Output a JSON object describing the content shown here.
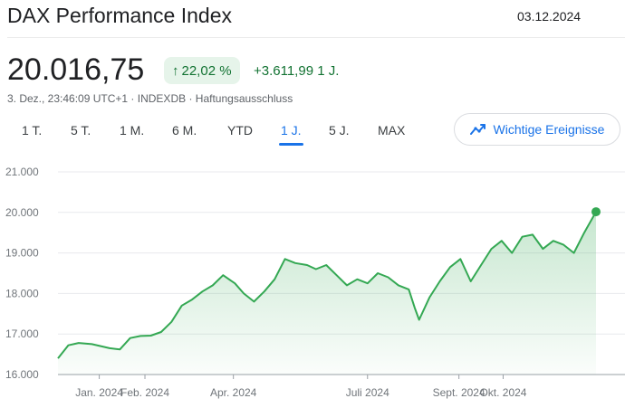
{
  "header": {
    "title": "DAX Performance Index",
    "date": "03.12.2024"
  },
  "quote": {
    "price": "20.016,75",
    "change_percent": "22,02 %",
    "change_abs": "+3.611,99 1 J.",
    "timestamp": "3. Dez., 23:46:09 UTC+1",
    "separator": "·",
    "exchange": "INDEXDB",
    "disclaimer": "Haftungsausschluss"
  },
  "tabs": [
    {
      "label": "1 T.",
      "active": false
    },
    {
      "label": "5 T.",
      "active": false
    },
    {
      "label": "1 M.",
      "active": false
    },
    {
      "label": "6 M.",
      "active": false
    },
    {
      "label": "YTD",
      "active": false
    },
    {
      "label": "1 J.",
      "active": true
    },
    {
      "label": "5 J.",
      "active": false
    },
    {
      "label": "MAX",
      "active": false
    }
  ],
  "events_button": {
    "label": "Wichtige Ereignisse",
    "icon": "trend-icon"
  },
  "colors": {
    "line": "#34a853",
    "accent": "#1a73e8",
    "positive": "#137333"
  },
  "chart_data": {
    "type": "area",
    "title": "",
    "xlabel": "",
    "ylabel": "",
    "ylim": [
      16000,
      21000
    ],
    "yticks": [
      "21.000",
      "20.000",
      "19.000",
      "18.000",
      "17.000",
      "16.000"
    ],
    "ytick_values": [
      21000,
      20000,
      19000,
      18000,
      17000,
      16000
    ],
    "xticks": [
      {
        "label": "Jan. 2024",
        "value": "2024-01-01"
      },
      {
        "label": "Feb. 2024",
        "value": "2024-02-01"
      },
      {
        "label": "Apr. 2024",
        "value": "2024-04-01"
      },
      {
        "label": "Juli 2024",
        "value": "2024-07-01"
      },
      {
        "label": "Sept. 2024",
        "value": "2024-09-01"
      },
      {
        "label": "Okt. 2024",
        "value": "2024-10-01"
      }
    ],
    "x_range": [
      "2023-12-04",
      "2024-12-03"
    ],
    "grid": true,
    "series": [
      {
        "x": [
          "2023-12-04",
          "2023-12-11",
          "2023-12-18",
          "2023-12-27",
          "2024-01-02",
          "2024-01-08",
          "2024-01-15",
          "2024-01-22",
          "2024-01-29",
          "2024-02-05",
          "2024-02-12",
          "2024-02-19",
          "2024-02-26",
          "2024-03-04",
          "2024-03-11",
          "2024-03-18",
          "2024-03-25",
          "2024-04-02",
          "2024-04-08",
          "2024-04-15",
          "2024-04-22",
          "2024-04-29",
          "2024-05-06",
          "2024-05-13",
          "2024-05-21",
          "2024-05-27",
          "2024-06-03",
          "2024-06-10",
          "2024-06-17",
          "2024-06-24",
          "2024-07-01",
          "2024-07-08",
          "2024-07-15",
          "2024-07-22",
          "2024-07-29",
          "2024-08-02",
          "2024-08-05",
          "2024-08-12",
          "2024-08-19",
          "2024-08-26",
          "2024-09-02",
          "2024-09-09",
          "2024-09-16",
          "2024-09-23",
          "2024-09-30",
          "2024-10-07",
          "2024-10-14",
          "2024-10-21",
          "2024-10-28",
          "2024-11-04",
          "2024-11-11",
          "2024-11-18",
          "2024-11-25",
          "2024-12-03"
        ],
        "y": [
          16400,
          16720,
          16780,
          16750,
          16700,
          16650,
          16620,
          16900,
          16950,
          16960,
          17050,
          17300,
          17700,
          17850,
          18050,
          18200,
          18450,
          18250,
          18000,
          17800,
          18050,
          18350,
          18850,
          18750,
          18700,
          18600,
          18700,
          18450,
          18200,
          18350,
          18250,
          18500,
          18400,
          18200,
          18100,
          17650,
          17350,
          17900,
          18300,
          18650,
          18850,
          18300,
          18700,
          19100,
          19300,
          19000,
          19400,
          19450,
          19100,
          19300,
          19200,
          19000,
          19500,
          20016
        ]
      }
    ]
  }
}
